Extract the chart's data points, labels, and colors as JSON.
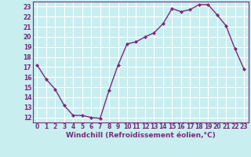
{
  "x": [
    0,
    1,
    2,
    3,
    4,
    5,
    6,
    7,
    8,
    9,
    10,
    11,
    12,
    13,
    14,
    15,
    16,
    17,
    18,
    19,
    20,
    21,
    22,
    23
  ],
  "y": [
    17.2,
    15.8,
    14.8,
    13.2,
    12.2,
    12.2,
    12.0,
    11.9,
    14.7,
    17.2,
    19.3,
    19.5,
    20.0,
    20.4,
    21.3,
    22.8,
    22.5,
    22.7,
    23.2,
    23.2,
    22.2,
    21.1,
    18.8,
    16.8
  ],
  "line_color": "#7b2b7b",
  "marker": "D",
  "marker_size": 2.0,
  "marker_linewidth": 0.5,
  "line_width": 1.0,
  "xlabel": "Windchill (Refroidissement éolien,°C)",
  "xlim": [
    -0.5,
    23.5
  ],
  "ylim": [
    11.5,
    23.5
  ],
  "xticks": [
    0,
    1,
    2,
    3,
    4,
    5,
    6,
    7,
    8,
    9,
    10,
    11,
    12,
    13,
    14,
    15,
    16,
    17,
    18,
    19,
    20,
    21,
    22,
    23
  ],
  "yticks": [
    12,
    13,
    14,
    15,
    16,
    17,
    18,
    19,
    20,
    21,
    22,
    23
  ],
  "background_color": "#c8eef0",
  "grid_color": "#ffffff",
  "line_border_color": "#7b2b7b",
  "text_color": "#7b2b7b",
  "tick_fontsize": 5.5,
  "xlabel_fontsize": 6.5
}
